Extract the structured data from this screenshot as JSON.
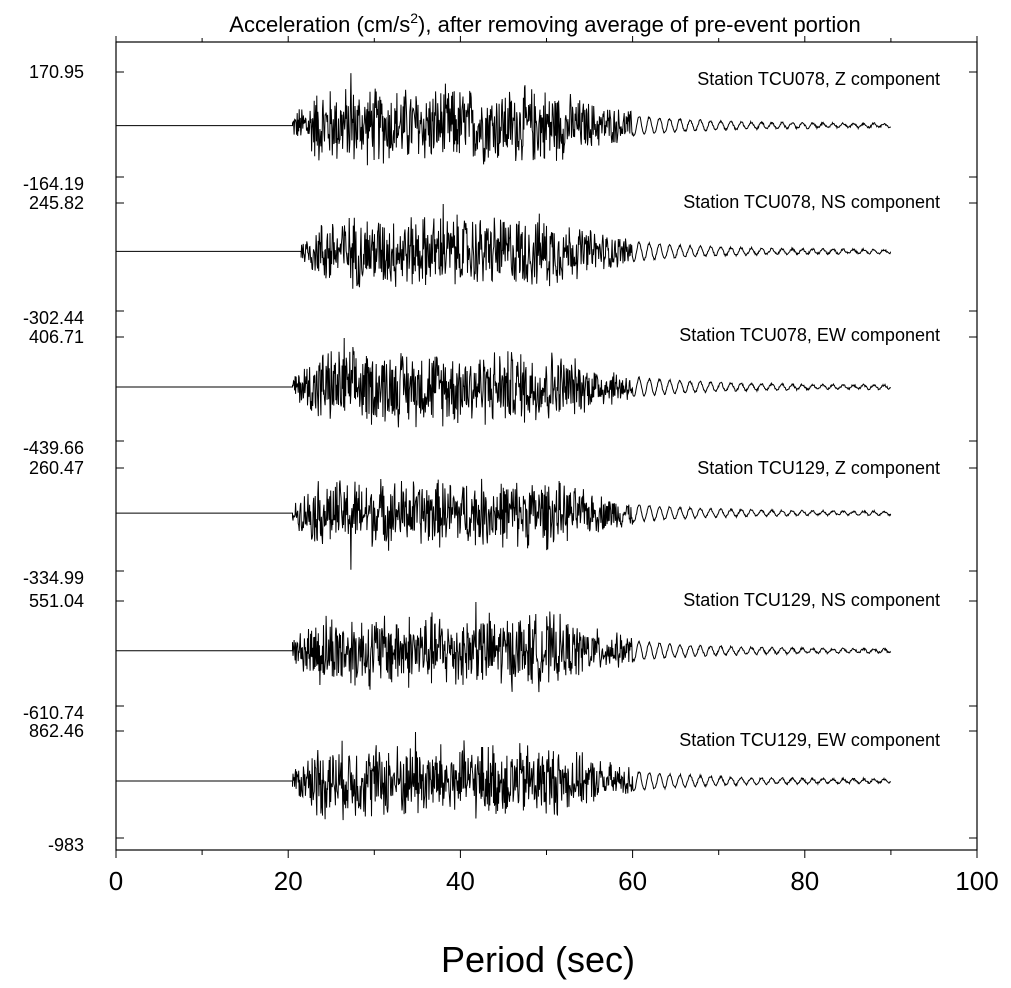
{
  "chart_data": {
    "type": "line",
    "title_main": "Acceleration (cm/s",
    "title_sup": "2",
    "title_rest": "), after removing average of pre-event portion",
    "xlabel": "Period (sec)",
    "xlim": [
      0,
      100
    ],
    "x_ticks": [
      "0",
      "20",
      "40",
      "60",
      "80",
      "100"
    ],
    "record_start": 0,
    "record_end": 90,
    "series": [
      {
        "name": "Station TCU078, Z component",
        "max_label": "170.95",
        "min_label": "-164.19",
        "max": 170.95,
        "min": -164.19,
        "onset": 20.5,
        "peak_time": 27.3
      },
      {
        "name": "Station TCU078, NS component",
        "max_label": "245.82",
        "min_label": "-302.44",
        "max": 245.82,
        "min": -302.44,
        "onset": 21.5,
        "peak_time": 38.0
      },
      {
        "name": "Station TCU078, EW component",
        "max_label": "406.71",
        "min_label": "-439.66",
        "max": 406.71,
        "min": -439.66,
        "onset": 20.5,
        "peak_time": 26.5
      },
      {
        "name": "Station TCU129, Z component",
        "max_label": "260.47",
        "min_label": "-334.99",
        "max": 260.47,
        "min": -334.99,
        "onset": 20.5,
        "peak_time": 27.3
      },
      {
        "name": "Station TCU129, NS component",
        "max_label": "551.04",
        "min_label": "-610.74",
        "max": 551.04,
        "min": -610.74,
        "onset": 20.5,
        "peak_time": 41.8
      },
      {
        "name": "Station TCU129, EW component",
        "max_label": "862.46",
        "min_label": "-983",
        "max": 862.46,
        "min": -983,
        "onset": 20.5,
        "peak_time": 34.8
      }
    ]
  }
}
